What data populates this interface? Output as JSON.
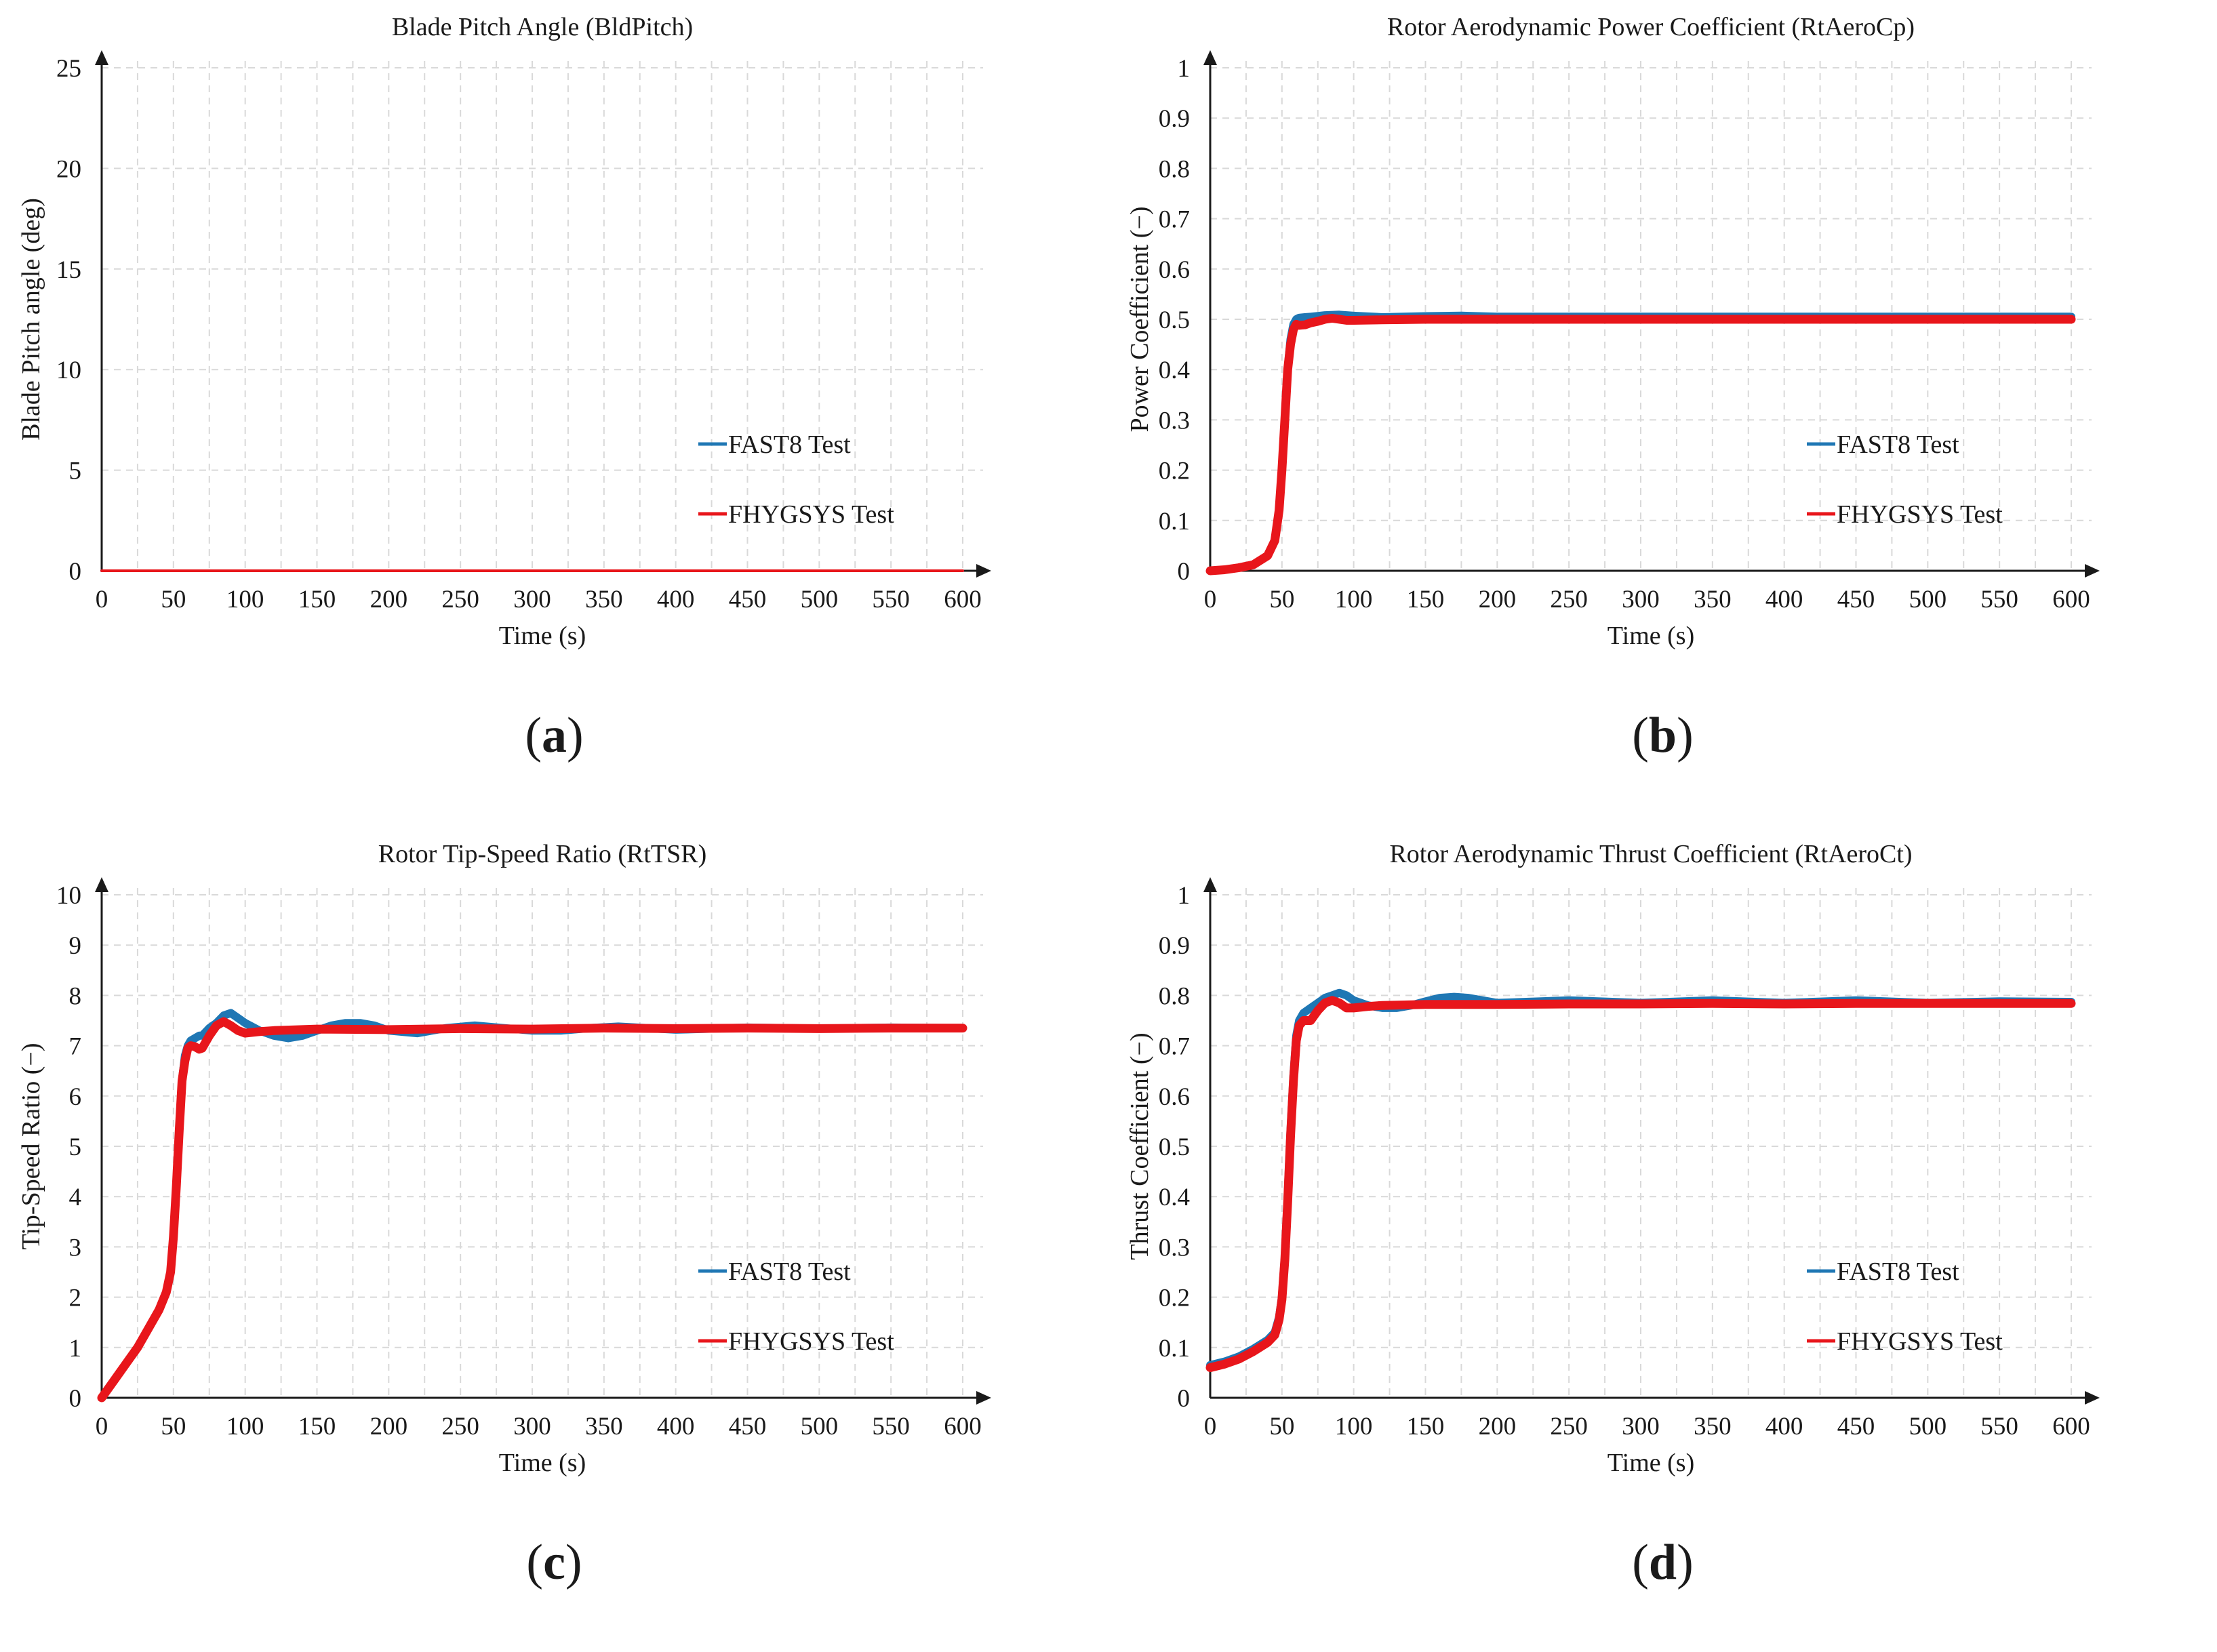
{
  "chart_data": [
    {
      "type": "line",
      "panel_label": "a",
      "title": "Blade Pitch Angle (BldPitch)",
      "xlabel": "Time (s)",
      "ylabel": "Blade Pitch angle (deg)",
      "xlim": [
        0,
        600
      ],
      "ylim": [
        0,
        25
      ],
      "xticks": [
        0,
        50,
        100,
        150,
        200,
        250,
        300,
        350,
        400,
        450,
        500,
        550,
        600
      ],
      "yticks": [
        0,
        5,
        10,
        15,
        20,
        25
      ],
      "y_decimals": 0,
      "legend_position": "center-right",
      "series": [
        {
          "name": "FAST8 Test",
          "color": "#1f77b4",
          "width": "thin",
          "x": [
            0,
            600
          ],
          "y": [
            0,
            0
          ]
        },
        {
          "name": "FHYGSYS Test",
          "color": "#e8161b",
          "width": "thin",
          "x": [
            0,
            600
          ],
          "y": [
            0,
            0
          ]
        }
      ]
    },
    {
      "type": "line",
      "panel_label": "b",
      "title": "Rotor Aerodynamic Power Coefficient (RtAeroCp)",
      "xlabel": "Time (s)",
      "ylabel": "Power Coefficient (−)",
      "xlim": [
        0,
        600
      ],
      "ylim": [
        0,
        1
      ],
      "xticks": [
        0,
        50,
        100,
        150,
        200,
        250,
        300,
        350,
        400,
        450,
        500,
        550,
        600
      ],
      "yticks": [
        0,
        0.1,
        0.2,
        0.3,
        0.4,
        0.5,
        0.6,
        0.7,
        0.8,
        0.9,
        1
      ],
      "y_decimals": 1,
      "legend_position": "center-right",
      "series": [
        {
          "name": "FAST8 Test",
          "color": "#1f77b4",
          "width": "thick",
          "x": [
            0,
            10,
            20,
            30,
            40,
            45,
            48,
            50,
            52,
            54,
            56,
            58,
            60,
            62,
            66,
            70,
            80,
            90,
            100,
            120,
            150,
            175,
            200,
            250,
            300,
            350,
            400,
            450,
            500,
            550,
            600
          ],
          "y": [
            0,
            0.002,
            0.006,
            0.012,
            0.03,
            0.06,
            0.12,
            0.2,
            0.3,
            0.4,
            0.46,
            0.49,
            0.5,
            0.503,
            0.504,
            0.505,
            0.508,
            0.509,
            0.507,
            0.504,
            0.506,
            0.507,
            0.505,
            0.505,
            0.505,
            0.505,
            0.505,
            0.505,
            0.505,
            0.505,
            0.505
          ]
        },
        {
          "name": "FHYGSYS Test",
          "color": "#e8161b",
          "width": "thick",
          "x": [
            0,
            10,
            20,
            30,
            40,
            45,
            48,
            50,
            52,
            54,
            56,
            58,
            60,
            62,
            66,
            70,
            75,
            80,
            85,
            90,
            95,
            100,
            120,
            150,
            200,
            250,
            300,
            350,
            400,
            450,
            500,
            550,
            600
          ],
          "y": [
            0,
            0.002,
            0.006,
            0.012,
            0.03,
            0.06,
            0.12,
            0.2,
            0.3,
            0.4,
            0.45,
            0.48,
            0.49,
            0.488,
            0.489,
            0.493,
            0.496,
            0.5,
            0.502,
            0.5,
            0.498,
            0.498,
            0.499,
            0.5,
            0.5,
            0.5,
            0.5,
            0.5,
            0.5,
            0.5,
            0.5,
            0.5,
            0.5
          ]
        }
      ]
    },
    {
      "type": "line",
      "panel_label": "c",
      "title": "Rotor Tip-Speed Ratio (RtTSR)",
      "xlabel": "Time (s)",
      "ylabel": "Tip-Speed Ratio (−)",
      "xlim": [
        0,
        600
      ],
      "ylim": [
        0,
        10
      ],
      "xticks": [
        0,
        50,
        100,
        150,
        200,
        250,
        300,
        350,
        400,
        450,
        500,
        550,
        600
      ],
      "yticks": [
        0,
        1,
        2,
        3,
        4,
        5,
        6,
        7,
        8,
        9,
        10
      ],
      "y_decimals": 0,
      "legend_position": "center-right",
      "series": [
        {
          "name": "FAST8 Test",
          "color": "#1f77b4",
          "width": "thick",
          "x": [
            0,
            10,
            20,
            25,
            30,
            35,
            40,
            45,
            48,
            50,
            52,
            54,
            56,
            58,
            60,
            62,
            65,
            68,
            70,
            75,
            80,
            85,
            90,
            95,
            100,
            110,
            120,
            130,
            140,
            150,
            160,
            170,
            180,
            190,
            200,
            220,
            240,
            260,
            280,
            300,
            320,
            340,
            360,
            380,
            400,
            450,
            500,
            550,
            600
          ],
          "y": [
            0,
            0.4,
            0.8,
            1.0,
            1.25,
            1.5,
            1.75,
            2.1,
            2.5,
            3.2,
            4.2,
            5.3,
            6.3,
            6.8,
            7.0,
            7.1,
            7.15,
            7.2,
            7.2,
            7.35,
            7.45,
            7.6,
            7.65,
            7.55,
            7.45,
            7.3,
            7.2,
            7.15,
            7.2,
            7.3,
            7.4,
            7.45,
            7.45,
            7.4,
            7.3,
            7.25,
            7.35,
            7.4,
            7.35,
            7.3,
            7.3,
            7.35,
            7.38,
            7.35,
            7.32,
            7.36,
            7.34,
            7.36,
            7.35
          ]
        },
        {
          "name": "FHYGSYS Test",
          "color": "#e8161b",
          "width": "thick",
          "x": [
            0,
            10,
            20,
            25,
            30,
            35,
            40,
            45,
            48,
            50,
            52,
            54,
            56,
            58,
            60,
            62,
            65,
            68,
            70,
            75,
            80,
            85,
            90,
            95,
            100,
            110,
            120,
            150,
            200,
            250,
            300,
            350,
            400,
            450,
            500,
            550,
            600
          ],
          "y": [
            0,
            0.4,
            0.8,
            1.0,
            1.25,
            1.5,
            1.75,
            2.1,
            2.5,
            3.2,
            4.2,
            5.3,
            6.3,
            6.7,
            6.95,
            7.0,
            6.98,
            6.93,
            6.95,
            7.2,
            7.4,
            7.48,
            7.4,
            7.3,
            7.25,
            7.28,
            7.3,
            7.33,
            7.32,
            7.34,
            7.33,
            7.35,
            7.34,
            7.35,
            7.34,
            7.35,
            7.35
          ]
        }
      ]
    },
    {
      "type": "line",
      "panel_label": "d",
      "title": "Rotor Aerodynamic Thrust Coefficient (RtAeroCt)",
      "xlabel": "Time (s)",
      "ylabel": "Thrust Coefficient (−)",
      "xlim": [
        0,
        600
      ],
      "ylim": [
        0,
        1
      ],
      "xticks": [
        0,
        50,
        100,
        150,
        200,
        250,
        300,
        350,
        400,
        450,
        500,
        550,
        600
      ],
      "yticks": [
        0,
        0.1,
        0.2,
        0.3,
        0.4,
        0.5,
        0.6,
        0.7,
        0.8,
        0.9,
        1
      ],
      "y_decimals": 1,
      "legend_position": "center-right",
      "series": [
        {
          "name": "FAST8 Test",
          "color": "#1f77b4",
          "width": "thick",
          "x": [
            0,
            10,
            20,
            30,
            40,
            45,
            48,
            50,
            52,
            54,
            56,
            58,
            60,
            62,
            65,
            70,
            75,
            80,
            85,
            90,
            95,
            100,
            110,
            120,
            130,
            140,
            150,
            160,
            170,
            180,
            200,
            250,
            300,
            350,
            400,
            450,
            500,
            550,
            600
          ],
          "y": [
            0.065,
            0.072,
            0.082,
            0.097,
            0.115,
            0.13,
            0.16,
            0.2,
            0.28,
            0.4,
            0.53,
            0.64,
            0.72,
            0.75,
            0.765,
            0.775,
            0.785,
            0.795,
            0.8,
            0.805,
            0.8,
            0.79,
            0.78,
            0.775,
            0.775,
            0.78,
            0.788,
            0.795,
            0.797,
            0.795,
            0.785,
            0.79,
            0.785,
            0.79,
            0.785,
            0.79,
            0.785,
            0.788,
            0.787
          ]
        },
        {
          "name": "FHYGSYS Test",
          "color": "#e8161b",
          "width": "thick",
          "x": [
            0,
            10,
            20,
            30,
            40,
            45,
            48,
            50,
            52,
            54,
            56,
            58,
            60,
            62,
            65,
            70,
            75,
            80,
            85,
            90,
            95,
            100,
            110,
            120,
            150,
            200,
            250,
            300,
            350,
            400,
            450,
            500,
            550,
            600
          ],
          "y": [
            0.06,
            0.067,
            0.077,
            0.092,
            0.11,
            0.125,
            0.155,
            0.195,
            0.275,
            0.39,
            0.52,
            0.63,
            0.71,
            0.74,
            0.75,
            0.75,
            0.77,
            0.785,
            0.79,
            0.785,
            0.775,
            0.775,
            0.778,
            0.78,
            0.782,
            0.782,
            0.783,
            0.783,
            0.784,
            0.783,
            0.784,
            0.784,
            0.784,
            0.784
          ]
        }
      ]
    }
  ]
}
